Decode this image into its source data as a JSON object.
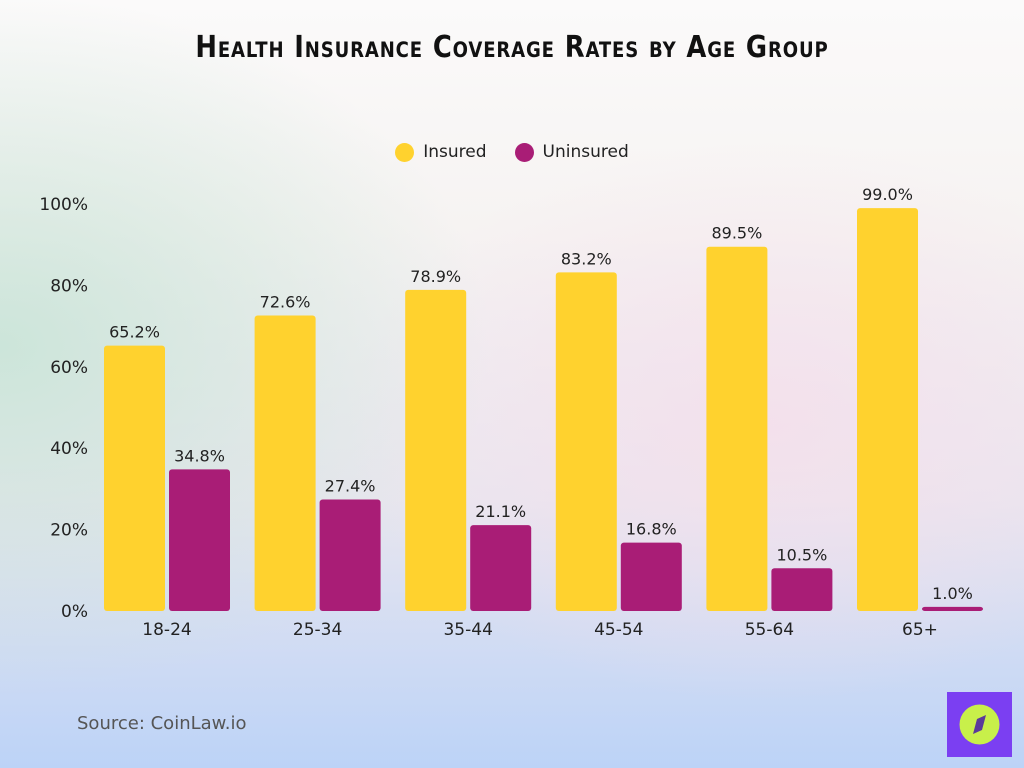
{
  "chart_data": {
    "type": "bar",
    "title": "Health Insurance Coverage Rates by Age Group",
    "categories": [
      "18-24",
      "25-34",
      "35-44",
      "45-54",
      "55-64",
      "65+"
    ],
    "series": [
      {
        "name": "Insured",
        "color": "#ffd22e",
        "values": [
          65.2,
          72.6,
          78.9,
          83.2,
          89.5,
          99.0
        ],
        "labels": [
          "65.2%",
          "72.6%",
          "78.9%",
          "83.2%",
          "89.5%",
          "99.0%"
        ]
      },
      {
        "name": "Uninsured",
        "color": "#a91d76",
        "values": [
          34.8,
          27.4,
          21.1,
          16.8,
          10.5,
          1.0
        ],
        "labels": [
          "34.8%",
          "27.4%",
          "21.1%",
          "16.8%",
          "10.5%",
          "1.0%"
        ]
      }
    ],
    "yticks": [
      "0%",
      "20%",
      "40%",
      "60%",
      "80%",
      "100%"
    ],
    "ylim": [
      0,
      100
    ],
    "grid": false,
    "legend_position": "top-center",
    "xlabel": "",
    "ylabel": ""
  },
  "source": "Source: CoinLaw.io",
  "logo": {
    "icon": "compass-icon",
    "background": "#7b3ff2",
    "accent": "#c8f04a"
  }
}
